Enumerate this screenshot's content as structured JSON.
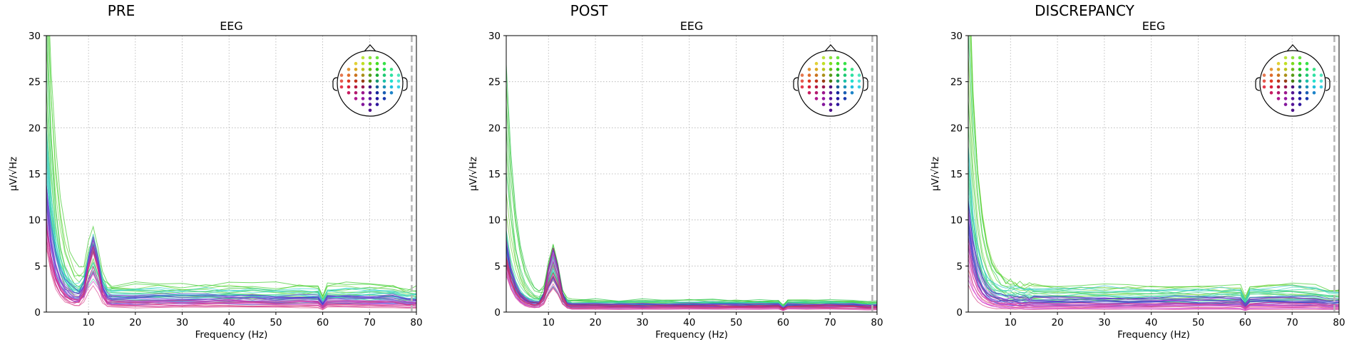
{
  "panel_titles": [
    "PRE",
    "POST",
    "DISCREPANCY"
  ],
  "chart_data": [
    {
      "type": "line",
      "title": "EEG",
      "panel_label": "PRE",
      "xlabel": "Frequency (Hz)",
      "ylabel": "µV/√Hz",
      "xlim": [
        1,
        80
      ],
      "ylim": [
        0,
        30
      ],
      "xticks": [
        10,
        20,
        30,
        40,
        50,
        60,
        70,
        80
      ],
      "yticks": [
        0,
        5,
        10,
        15,
        20,
        25,
        30
      ],
      "grid": true,
      "cutoff_line_hz": 79,
      "legend": "topomap inset, top-right",
      "x": [
        1,
        2,
        3,
        4,
        5,
        6,
        7,
        8,
        9,
        10,
        11,
        12,
        13,
        14,
        15,
        20,
        25,
        30,
        35,
        40,
        45,
        50,
        55,
        59,
        60,
        61,
        65,
        70,
        75,
        78,
        80
      ],
      "series_groups": [
        {
          "color_family": "green",
          "count": 10,
          "low_start": 20,
          "high_start": 40,
          "low_floor": 1.4,
          "high_floor": 3.0
        },
        {
          "color_family": "teal",
          "count": 10,
          "low_start": 12,
          "high_start": 20,
          "low_floor": 1.2,
          "high_floor": 2.4
        },
        {
          "color_family": "blue-purple",
          "count": 12,
          "low_start": 9,
          "high_start": 14,
          "low_floor": 0.9,
          "high_floor": 1.8
        },
        {
          "color_family": "magenta-red",
          "count": 10,
          "low_start": 7,
          "high_start": 10,
          "low_floor": 0.5,
          "high_floor": 1.2
        }
      ],
      "alpha_peak": {
        "x": 11,
        "height": [
          2,
          6.5
        ]
      },
      "line_noise_dip": {
        "x": 60
      }
    },
    {
      "type": "line",
      "title": "EEG",
      "panel_label": "POST",
      "xlabel": "Frequency (Hz)",
      "ylabel": "µV/√Hz",
      "xlim": [
        1,
        80
      ],
      "ylim": [
        0,
        30
      ],
      "xticks": [
        10,
        20,
        30,
        40,
        50,
        60,
        70,
        80
      ],
      "yticks": [
        0,
        5,
        10,
        15,
        20,
        25,
        30
      ],
      "grid": true,
      "cutoff_line_hz": 79,
      "legend": "topomap inset, top-right",
      "x": [
        1,
        2,
        3,
        4,
        5,
        6,
        7,
        8,
        9,
        10,
        11,
        12,
        13,
        14,
        15,
        20,
        25,
        30,
        35,
        40,
        45,
        50,
        55,
        59,
        60,
        61,
        65,
        70,
        75,
        78,
        80
      ],
      "series_groups": [
        {
          "color_family": "green",
          "count": 10,
          "low_start": 6,
          "high_start": 27,
          "low_floor": 0.8,
          "high_floor": 1.3
        },
        {
          "color_family": "teal",
          "count": 10,
          "low_start": 5,
          "high_start": 9,
          "low_floor": 0.7,
          "high_floor": 1.1
        },
        {
          "color_family": "blue-purple",
          "count": 12,
          "low_start": 5,
          "high_start": 8,
          "low_floor": 0.5,
          "high_floor": 0.9
        },
        {
          "color_family": "magenta-red",
          "count": 10,
          "low_start": 4,
          "high_start": 6,
          "low_floor": 0.3,
          "high_floor": 0.7
        }
      ],
      "alpha_peak": {
        "x": 11,
        "height": [
          2,
          6.5
        ]
      },
      "line_noise_dip": {
        "x": 60
      }
    },
    {
      "type": "line",
      "title": "EEG",
      "panel_label": "DISCREPANCY",
      "xlabel": "Frequency (Hz)",
      "ylabel": "µV/√Hz",
      "xlim": [
        1,
        80
      ],
      "ylim": [
        0,
        30
      ],
      "xticks": [
        10,
        20,
        30,
        40,
        50,
        60,
        70,
        80
      ],
      "yticks": [
        0,
        5,
        10,
        15,
        20,
        25,
        30
      ],
      "grid": true,
      "cutoff_line_hz": 79,
      "legend": "topomap inset, top-right",
      "x": [
        1,
        2,
        3,
        4,
        5,
        6,
        7,
        8,
        9,
        10,
        11,
        12,
        13,
        14,
        15,
        20,
        25,
        30,
        35,
        40,
        45,
        50,
        55,
        59,
        60,
        61,
        65,
        70,
        75,
        78,
        80
      ],
      "series_groups": [
        {
          "color_family": "green",
          "count": 10,
          "low_start": 18,
          "high_start": 40,
          "low_floor": 1.3,
          "high_floor": 3.0
        },
        {
          "color_family": "teal",
          "count": 10,
          "low_start": 10,
          "high_start": 18,
          "low_floor": 1.1,
          "high_floor": 2.6
        },
        {
          "color_family": "blue-purple",
          "count": 12,
          "low_start": 7,
          "high_start": 12,
          "low_floor": 0.7,
          "high_floor": 1.6
        },
        {
          "color_family": "magenta-red",
          "count": 10,
          "low_start": 3,
          "high_start": 8,
          "low_floor": 0.3,
          "high_floor": 1.0
        }
      ],
      "alpha_peak": {
        "x": 11,
        "height": [
          0,
          0
        ]
      },
      "line_noise_dip": {
        "x": 60
      }
    }
  ]
}
